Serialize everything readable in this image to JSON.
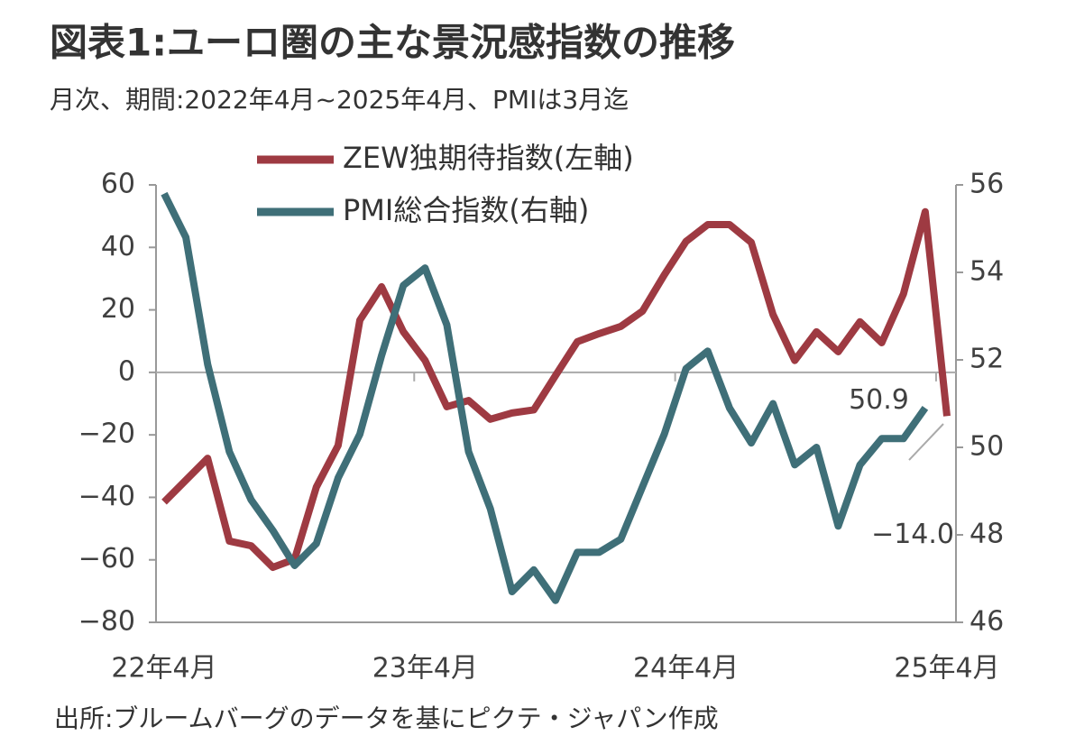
{
  "chart_data": {
    "type": "line",
    "title": "図表1:ユーロ圏の主な景況感指数の推移",
    "subtitle": "月次、期間:2022年4月~2025年4月、PMIは3月迄",
    "source": "出所:ブルームバーグのデータを基にピクテ・ジャパン作成",
    "categories": [
      "22年4月",
      null,
      null,
      null,
      null,
      null,
      null,
      null,
      null,
      null,
      null,
      null,
      "23年4月",
      null,
      null,
      null,
      null,
      null,
      null,
      null,
      null,
      null,
      null,
      null,
      "24年4月",
      null,
      null,
      null,
      null,
      null,
      null,
      null,
      null,
      null,
      null,
      null,
      "25年4月"
    ],
    "ylim": [
      -80,
      60
    ],
    "yticks": [
      {
        "value": -80,
        "label": "−80"
      },
      {
        "value": -60,
        "label": "−60"
      },
      {
        "value": -40,
        "label": "−40"
      },
      {
        "value": -20,
        "label": "−20"
      },
      0,
      20,
      40,
      60
    ],
    "y2lim": [
      46,
      56
    ],
    "y2ticks": [
      46,
      48,
      50,
      52,
      54,
      56
    ],
    "series": [
      {
        "name": "ZEW独期待指数(左軸)",
        "color": "#9e3a42",
        "values": [
          -41.5,
          -34.5,
          -27.5,
          -54,
          -55.5,
          -62.4,
          -59.8,
          -36.7,
          -23.4,
          16.7,
          27.4,
          13,
          3.8,
          -11,
          -9,
          -15,
          -13,
          -12,
          -1,
          9.8,
          12.4,
          14.7,
          19.6,
          31.2,
          41.9,
          47.3,
          47.3,
          41.6,
          18.5,
          3.8,
          13,
          6.6,
          16.2,
          9.5,
          25.1,
          51.4,
          -14.0
        ],
        "value_labels": [
          null,
          null,
          null,
          null,
          null,
          null,
          null,
          null,
          null,
          null,
          null,
          null,
          null,
          null,
          null,
          null,
          null,
          null,
          null,
          null,
          null,
          null,
          null,
          null,
          null,
          null,
          null,
          null,
          null,
          null,
          null,
          null,
          null,
          null,
          null,
          null,
          "−14.0"
        ]
      },
      {
        "name": "PMI総合指数(右軸)",
        "color": "#3f6f78",
        "axis": "y2",
        "values": [
          55.8,
          54.8,
          51.9,
          49.9,
          48.8,
          48.1,
          47.3,
          47.8,
          49.3,
          50.3,
          52.1,
          53.7,
          54.1,
          52.8,
          49.9,
          48.6,
          46.7,
          47.2,
          46.5,
          47.6,
          47.6,
          47.9,
          49.1,
          50.3,
          51.8,
          52.2,
          50.9,
          50.1,
          51.0,
          49.6,
          50.0,
          48.2,
          49.6,
          50.2,
          50.2,
          50.9,
          null
        ],
        "value_labels": [
          null,
          null,
          null,
          null,
          null,
          null,
          null,
          null,
          null,
          null,
          null,
          null,
          null,
          null,
          null,
          null,
          null,
          null,
          null,
          null,
          null,
          null,
          null,
          null,
          null,
          null,
          null,
          null,
          null,
          null,
          null,
          null,
          null,
          null,
          null,
          "50.9",
          null
        ]
      }
    ]
  }
}
